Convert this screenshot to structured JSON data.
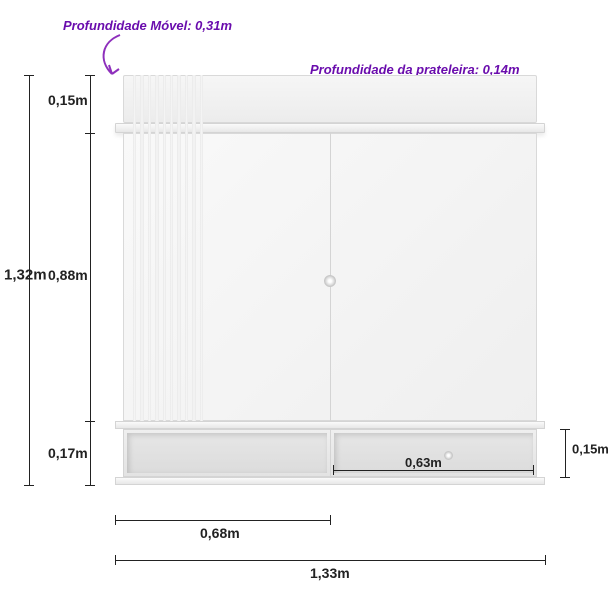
{
  "annotations": {
    "depth_unit": "Profundidade Móvel: 0,31m",
    "shelf_depth": "Profundidade da prateleira: 0,14m"
  },
  "dimensions": {
    "total_height": "1,32m",
    "top_band_h": "0,15m",
    "back_panel_h": "0,88m",
    "compartment_h": "0,17m",
    "compartment_inner_h": "0,15m",
    "total_width": "1,33m",
    "half_width": "0,68m",
    "inner_half_width": "0,63m"
  },
  "style": {
    "accent_color": "#8e2fbc",
    "text_color": "#222222",
    "furniture_light": "#f6f6f6",
    "furniture_shadow": "#e3e3e3",
    "slat_count": 10
  },
  "diagram_type": "dimensioned-product-illustration"
}
